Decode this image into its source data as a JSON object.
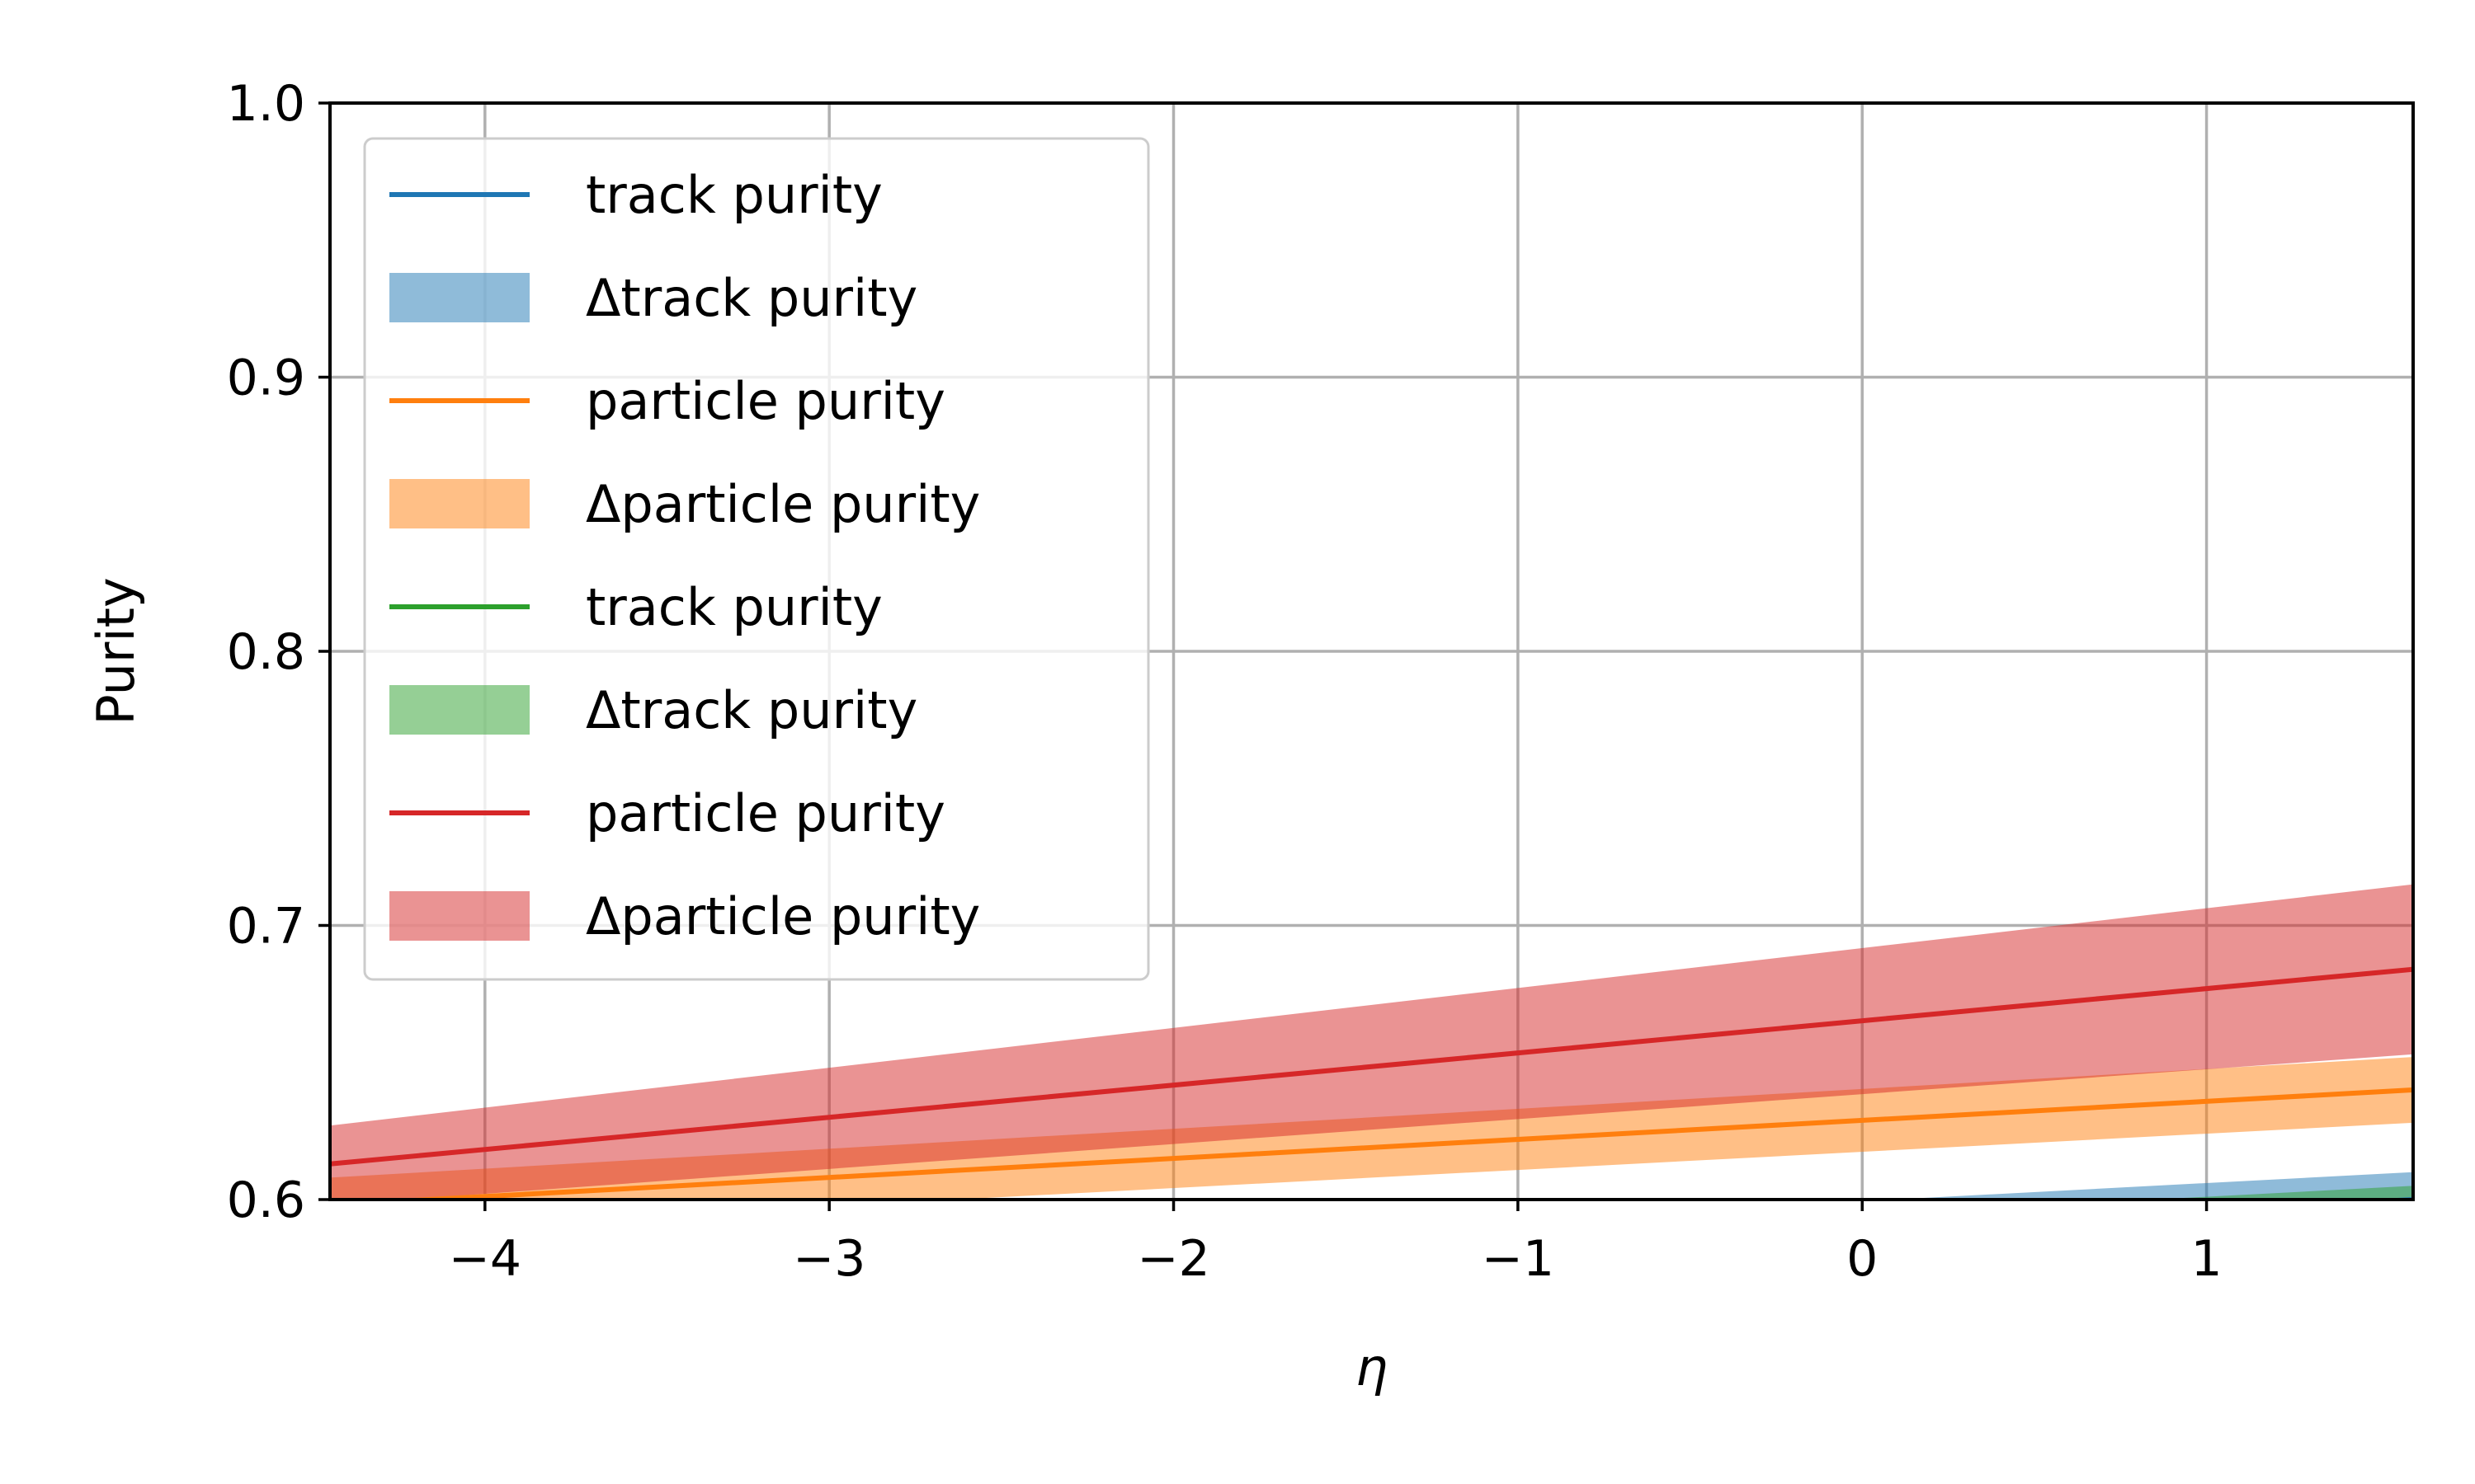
{
  "chart_data": {
    "type": "line",
    "title": "",
    "xlabel": "η",
    "ylabel": "Purity",
    "xlim": [
      -4.45,
      1.6
    ],
    "ylim": [
      0.6,
      1.0
    ],
    "xticks": [
      -4,
      -3,
      -2,
      -1,
      0,
      1
    ],
    "xtick_labels": [
      "−4",
      "−3",
      "−2",
      "−1",
      "0",
      "1"
    ],
    "yticks": [
      0.6,
      0.7,
      0.8,
      0.9,
      1.0
    ],
    "ytick_labels": [
      "0.6",
      "0.7",
      "0.8",
      "0.9",
      "1.0"
    ],
    "grid": true,
    "legend_position": "upper-left",
    "series": [
      {
        "name": "track purity",
        "band_name": "Δtrack purity",
        "color": "#1f77b4",
        "x": [
          -4.45,
          1.6
        ],
        "y": [
          0.56,
          0.6
        ],
        "lower": [
          0.55,
          0.59
        ],
        "upper": [
          0.57,
          0.61
        ]
      },
      {
        "name": "particle purity",
        "band_name": "Δparticle purity",
        "color": "#ff7f0e",
        "x": [
          -4.45,
          1.6
        ],
        "y": [
          0.598,
          0.64
        ],
        "lower": [
          0.588,
          0.628
        ],
        "upper": [
          0.608,
          0.652
        ]
      },
      {
        "name": "track purity",
        "band_name": "Δtrack purity",
        "color": "#2ca02c",
        "x": [
          -4.45,
          1.6
        ],
        "y": [
          0.555,
          0.595
        ],
        "lower": [
          0.545,
          0.585
        ],
        "upper": [
          0.565,
          0.605
        ]
      },
      {
        "name": "particle purity",
        "band_name": "Δparticle purity",
        "color": "#d62728",
        "x": [
          -4.45,
          1.6
        ],
        "y": [
          0.613,
          0.684
        ],
        "lower": [
          0.598,
          0.653
        ],
        "upper": [
          0.627,
          0.715
        ]
      }
    ]
  }
}
